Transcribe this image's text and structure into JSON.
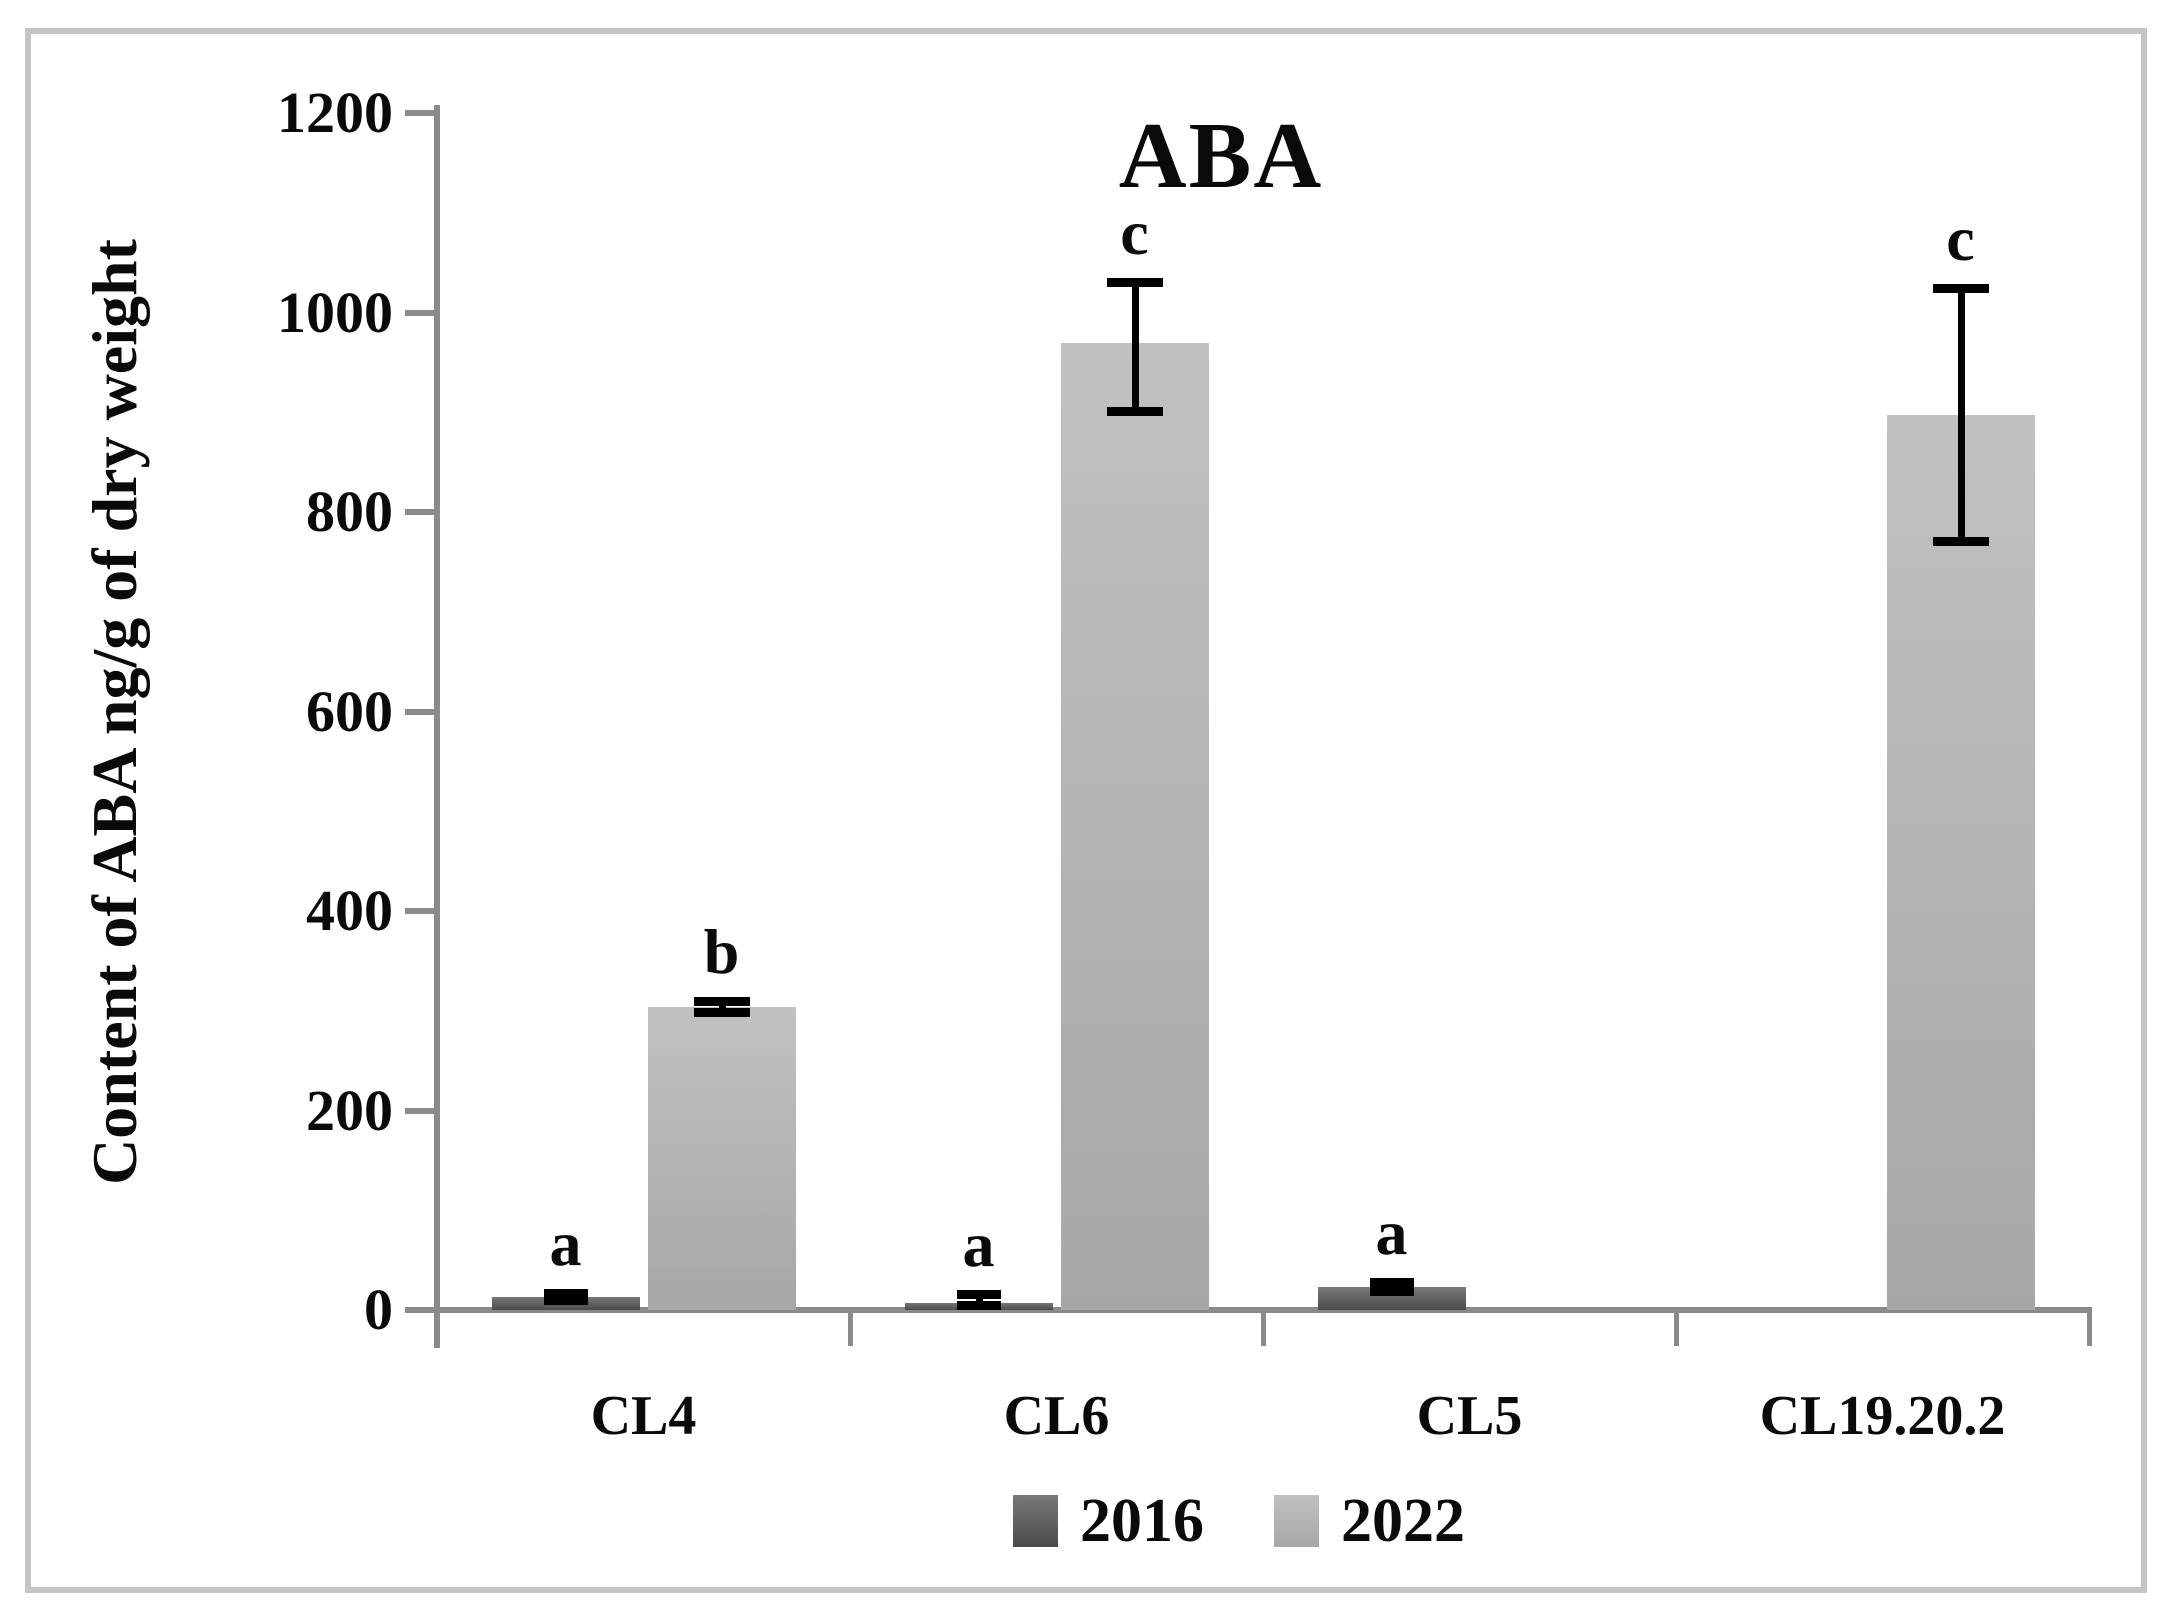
{
  "title": "ABA",
  "y_axis": {
    "label": "Content of ABA ng/g of dry weight",
    "ticks": [
      0,
      200,
      400,
      600,
      800,
      1000,
      1200
    ],
    "min": 0,
    "max": 1200
  },
  "legend": [
    {
      "label": "2016",
      "color_top": "#787878",
      "color_bottom": "#4b4b4b"
    },
    {
      "label": "2022",
      "color_top": "#c1c1c1",
      "color_bottom": "#a7a7a7"
    }
  ],
  "frame_color": "#c5c5c5",
  "axis_color": "#8a8a8a",
  "chart_data": {
    "type": "bar",
    "title": "ABA",
    "xlabel": "",
    "ylabel": "Content of ABA ng/g of dry weight",
    "ylim": [
      0,
      1200
    ],
    "ytick_step": 200,
    "grid": false,
    "legend_position": "bottom",
    "categories": [
      "CL4",
      "CL6",
      "CL5",
      "CL19.20.2"
    ],
    "series": [
      {
        "name": "2016",
        "values": [
          13,
          7,
          23,
          0
        ],
        "errors_plus": [
          4,
          9,
          5,
          0
        ],
        "errors_minus": [
          4,
          3,
          5,
          0
        ],
        "letters": [
          "a",
          "a",
          "a",
          ""
        ]
      },
      {
        "name": "2022",
        "values": [
          304,
          969,
          0,
          897
        ],
        "errors_plus": [
          6,
          62,
          0,
          128
        ],
        "errors_minus": [
          6,
          69,
          0,
          127
        ],
        "letters": [
          "b",
          "c",
          "",
          "c"
        ]
      }
    ]
  }
}
